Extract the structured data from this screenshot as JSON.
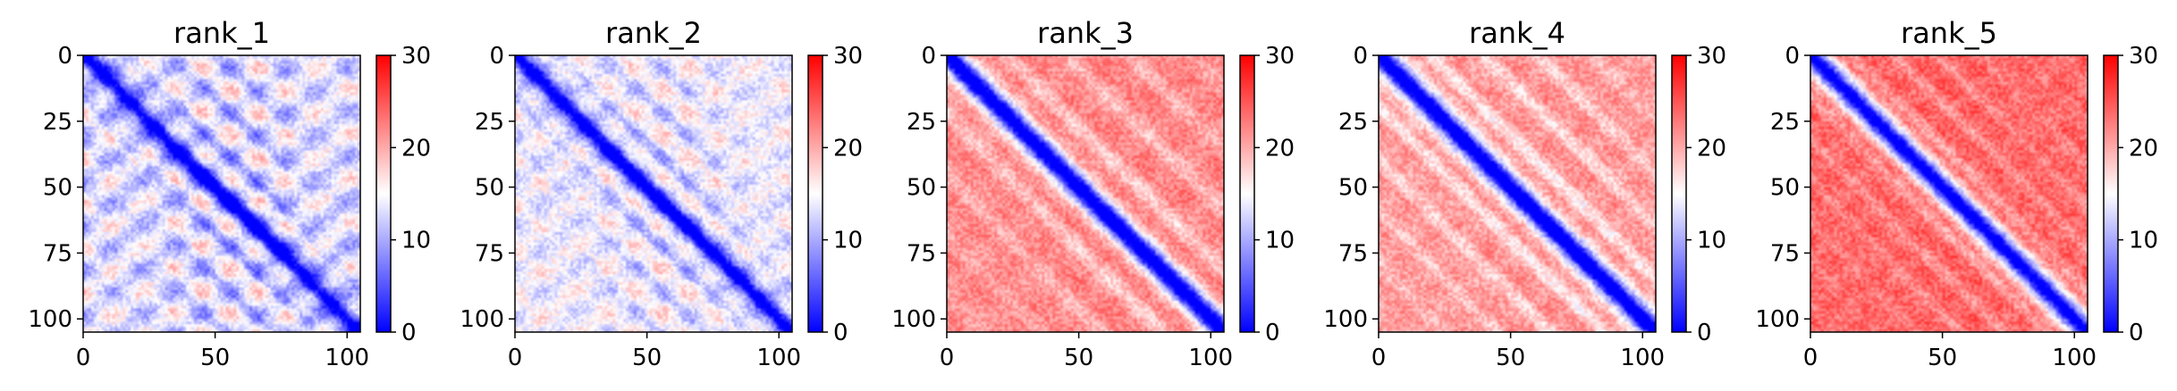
{
  "chart_data": [
    {
      "type": "heatmap",
      "title": "rank_1",
      "size": 105,
      "xlim": [
        0,
        105
      ],
      "ylim": [
        105,
        0
      ],
      "xticks": [
        "0",
        "50",
        "100"
      ],
      "yticks": [
        "0",
        "25",
        "50",
        "75",
        "100"
      ],
      "colorbar": {
        "min": 0,
        "max": 30,
        "ticks": [
          "0",
          "10",
          "20",
          "30"
        ],
        "colormap": "bwr"
      },
      "pattern": {
        "base": 14,
        "band_width": 4,
        "period": 17,
        "domain_amp": 5,
        "stripe_amp": 5
      }
    },
    {
      "type": "heatmap",
      "title": "rank_2",
      "size": 105,
      "xlim": [
        0,
        105
      ],
      "ylim": [
        105,
        0
      ],
      "xticks": [
        "0",
        "50",
        "100"
      ],
      "yticks": [
        "0",
        "25",
        "50",
        "75",
        "100"
      ],
      "colorbar": {
        "min": 0,
        "max": 30,
        "ticks": [
          "0",
          "10",
          "20",
          "30"
        ],
        "colormap": "bwr"
      },
      "pattern": {
        "base": 15,
        "band_width": 4,
        "period": 17,
        "domain_amp": 5,
        "stripe_amp": 3
      }
    },
    {
      "type": "heatmap",
      "title": "rank_3",
      "size": 105,
      "xlim": [
        0,
        105
      ],
      "ylim": [
        105,
        0
      ],
      "xticks": [
        "0",
        "50",
        "100"
      ],
      "yticks": [
        "0",
        "25",
        "50",
        "75",
        "100"
      ],
      "colorbar": {
        "min": 0,
        "max": 30,
        "ticks": [
          "0",
          "10",
          "20",
          "30"
        ],
        "colormap": "bwr"
      },
      "pattern": {
        "base": 22,
        "band_width": 5,
        "period": 23,
        "domain_amp": 5,
        "stripe_amp": 1
      }
    },
    {
      "type": "heatmap",
      "title": "rank_4",
      "size": 105,
      "xlim": [
        0,
        105
      ],
      "ylim": [
        105,
        0
      ],
      "xticks": [
        "0",
        "50",
        "100"
      ],
      "yticks": [
        "0",
        "25",
        "50",
        "75",
        "100"
      ],
      "colorbar": {
        "min": 0,
        "max": 30,
        "ticks": [
          "0",
          "10",
          "20",
          "30"
        ],
        "colormap": "bwr"
      },
      "pattern": {
        "base": 21,
        "band_width": 5,
        "period": 20,
        "domain_amp": 6,
        "stripe_amp": 1
      }
    },
    {
      "type": "heatmap",
      "title": "rank_5",
      "size": 105,
      "xlim": [
        0,
        105
      ],
      "ylim": [
        105,
        0
      ],
      "xticks": [
        "0",
        "50",
        "100"
      ],
      "yticks": [
        "0",
        "25",
        "50",
        "75",
        "100"
      ],
      "colorbar": {
        "min": 0,
        "max": 30,
        "ticks": [
          "0",
          "10",
          "20",
          "30"
        ],
        "colormap": "bwr"
      },
      "pattern": {
        "base": 24,
        "band_width": 5,
        "period": 16,
        "domain_amp": 4,
        "stripe_amp": 1
      }
    }
  ]
}
